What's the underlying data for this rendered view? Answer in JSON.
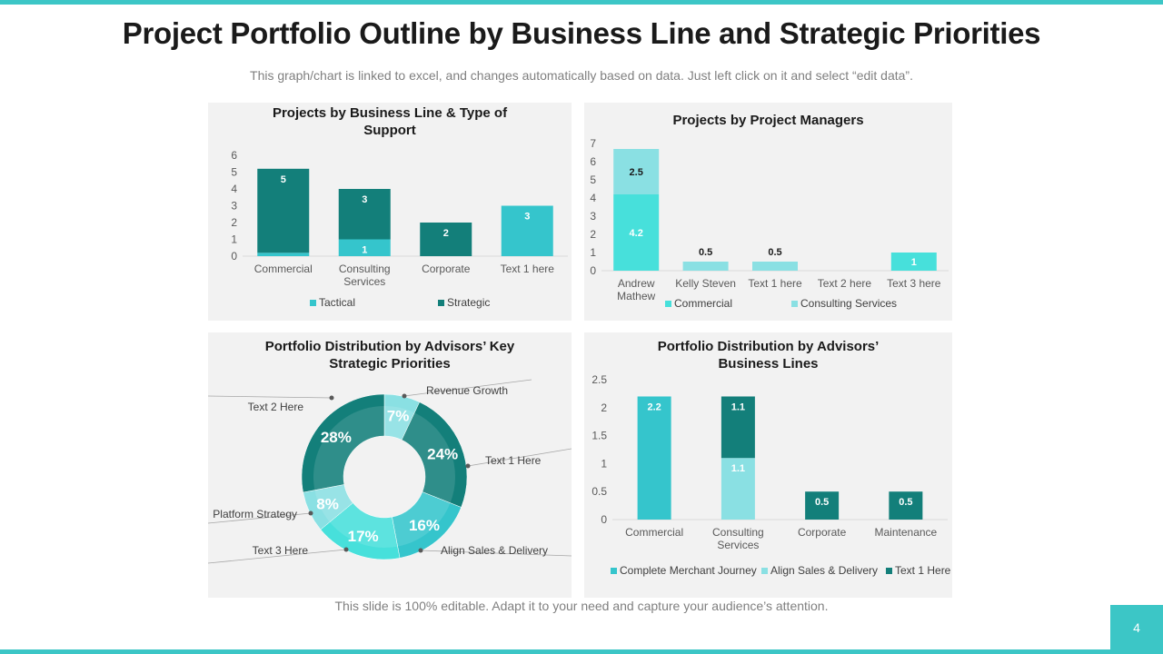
{
  "slide": {
    "title": "Project Portfolio Outline by Business Line and Strategic Priorities",
    "subtitle": "This graph/chart is linked to excel, and changes automatically based on data. Just left click on it and select “edit data”.",
    "footer": "This slide is 100% editable. Adapt it to your need and capture your audience’s attention.",
    "page_number": "4",
    "colors": {
      "accent": "#3cc6c6",
      "dark_teal": "#137f7a",
      "teal": "#35c5cc",
      "light_teal": "#8ae0e3",
      "cyan": "#47e0db",
      "panel_bg": "#f2f2f2"
    }
  },
  "chart_data": [
    {
      "id": "business-line",
      "type": "bar",
      "stacked": true,
      "title": "Projects by Business Line & Type of Support",
      "categories": [
        "Commercial",
        "Consulting Services",
        "Corporate",
        "Text 1 here"
      ],
      "series": [
        {
          "name": "Tactical",
          "values": [
            0.2,
            1,
            0,
            3
          ],
          "labels": [
            "",
            "1",
            "",
            "3"
          ],
          "color": "#35c5cc"
        },
        {
          "name": "Strategic",
          "values": [
            5,
            3,
            2,
            0
          ],
          "labels": [
            "5",
            "3",
            "2",
            ""
          ],
          "color": "#137f7a"
        }
      ],
      "ylim": [
        0,
        6
      ],
      "yticks": [
        0,
        1,
        2,
        3,
        4,
        5,
        6
      ],
      "legend": "bottom"
    },
    {
      "id": "project-managers",
      "type": "bar",
      "stacked": true,
      "title": "Projects by Project Managers",
      "categories": [
        "Andrew Mathew",
        "Kelly Steven",
        "Text 1 here",
        "Text 2 here",
        "Text 3 here"
      ],
      "series": [
        {
          "name": "Commercial",
          "values": [
            4.2,
            0,
            0,
            0,
            1
          ],
          "labels": [
            "4.2",
            "",
            "",
            "",
            "1"
          ],
          "color": "#47e0db"
        },
        {
          "name": "Consulting Services",
          "values": [
            2.5,
            0.5,
            0.5,
            0,
            0
          ],
          "labels": [
            "2.5",
            "0.5",
            "0.5",
            "",
            ""
          ],
          "color": "#8ae0e3"
        }
      ],
      "ylim": [
        0,
        7
      ],
      "yticks": [
        0,
        1,
        2,
        3,
        4,
        5,
        6,
        7
      ],
      "legend": "bottom"
    },
    {
      "id": "key-priorities",
      "type": "pie",
      "donut": true,
      "title": "Portfolio Distribution by Advisors’ Key Strategic Priorities",
      "slices": [
        {
          "label": "Revenue Growth",
          "value": 7,
          "text": "7%",
          "color": "#8ae0e3"
        },
        {
          "label": "Text 1 Here",
          "value": 24,
          "text": "24%",
          "color": "#137f7a"
        },
        {
          "label": "Align Sales & Delivery",
          "value": 16,
          "text": "16%",
          "color": "#35c5cc"
        },
        {
          "label": "Text 3 Here",
          "value": 17,
          "text": "17%",
          "color": "#47e0db"
        },
        {
          "label": "Platform Strategy",
          "value": 8,
          "text": "8%",
          "color": "#8ae0e3"
        },
        {
          "label": "Text 2 Here",
          "value": 28,
          "text": "28%",
          "color": "#137f7a"
        }
      ]
    },
    {
      "id": "advisor-business-lines",
      "type": "bar",
      "stacked": true,
      "title": "Portfolio Distribution by Advisors’ Business Lines",
      "categories": [
        "Commercial",
        "Consulting Services",
        "Corporate",
        "Maintenance"
      ],
      "series": [
        {
          "name": "Complete Merchant Journey",
          "values": [
            2.2,
            0,
            0,
            0
          ],
          "labels": [
            "2.2",
            "",
            "",
            ""
          ],
          "color": "#35c5cc"
        },
        {
          "name": "Align Sales & Delivery",
          "values": [
            0,
            1.1,
            0,
            0
          ],
          "labels": [
            "",
            "1.1",
            "",
            ""
          ],
          "color": "#8ae0e3"
        },
        {
          "name": "Text 1 Here",
          "values": [
            0,
            1.1,
            0.5,
            0.5
          ],
          "labels": [
            "",
            "1.1",
            "0.5",
            "0.5"
          ],
          "color": "#137f7a"
        }
      ],
      "ylim": [
        0,
        2.5
      ],
      "yticks": [
        0,
        0.5,
        1,
        1.5,
        2,
        2.5
      ],
      "legend": "bottom"
    }
  ]
}
